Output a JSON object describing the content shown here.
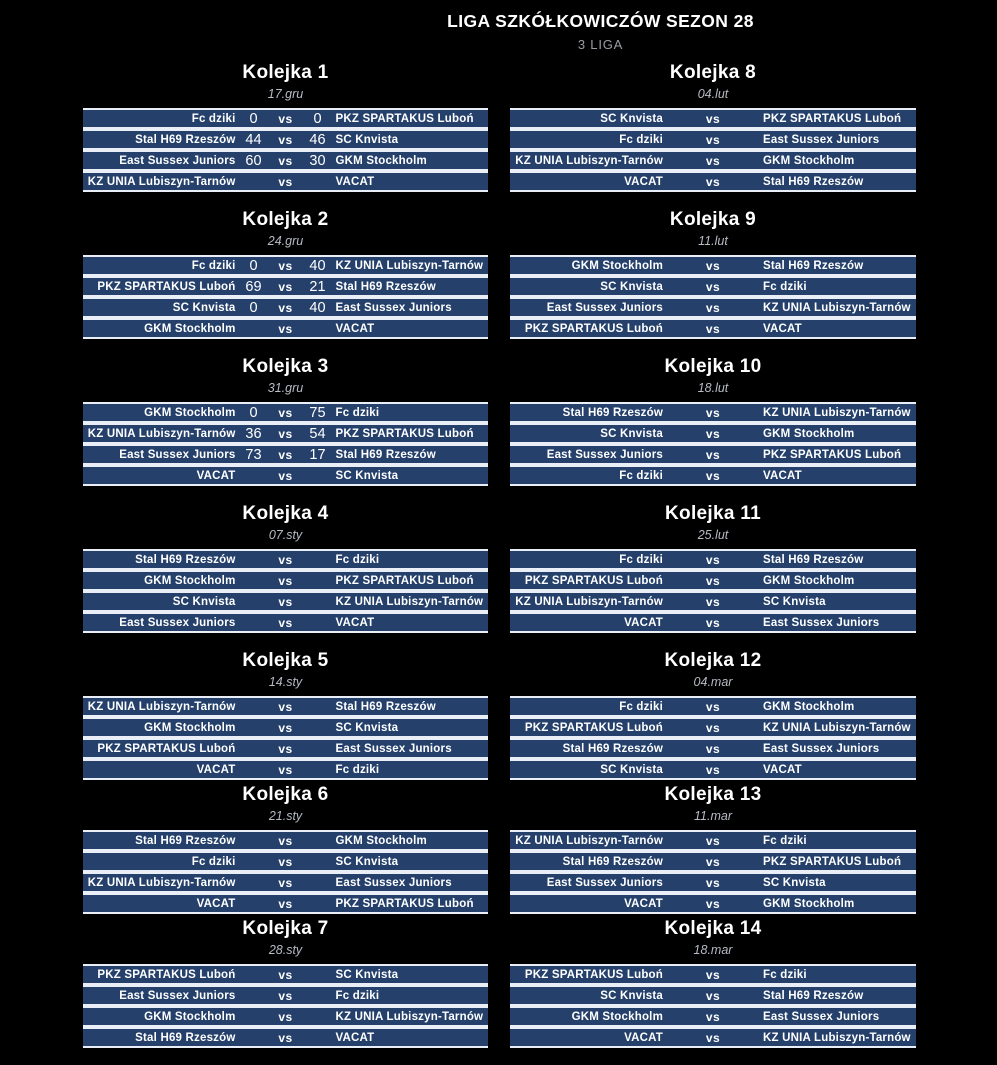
{
  "header": {
    "title": "LIGA SZKÓŁKOWICZÓW SEZON 28",
    "subtitle": "3 LIGA"
  },
  "labels": {
    "vs": "vs"
  },
  "colors": {
    "background": "#000000",
    "row_navy": "#24406b",
    "row_separator": "#e9eef7",
    "title_text": "#ffffff",
    "subtitle_text": "#9a9da3",
    "date_text": "#b7bbc4"
  },
  "rounds": [
    {
      "name": "Kolejka 1",
      "date": "17.gru",
      "column": "left",
      "matches": [
        {
          "home": "Fc dziki",
          "home_score": "0",
          "away_score": "0",
          "away": "PKŻ SPARTAKUS Luboń"
        },
        {
          "home": "Stal H69 Rzeszów",
          "home_score": "44",
          "away_score": "46",
          "away": "SC Knvista"
        },
        {
          "home": "East Sussex Juniors",
          "home_score": "60",
          "away_score": "30",
          "away": "GKM Stockholm"
        },
        {
          "home": "KŻ UNIA Lubiszyn-Tarnów",
          "home_score": "",
          "away_score": "",
          "away": "VACAT"
        }
      ]
    },
    {
      "name": "Kolejka 2",
      "date": "24.gru",
      "column": "left",
      "matches": [
        {
          "home": "Fc dziki",
          "home_score": "0",
          "away_score": "40",
          "away": "KŻ UNIA Lubiszyn-Tarnów"
        },
        {
          "home": "PKŻ SPARTAKUS Luboń",
          "home_score": "69",
          "away_score": "21",
          "away": "Stal H69 Rzeszów"
        },
        {
          "home": "SC Knvista",
          "home_score": "0",
          "away_score": "40",
          "away": "East Sussex Juniors"
        },
        {
          "home": "GKM Stockholm",
          "home_score": "",
          "away_score": "",
          "away": "VACAT"
        }
      ]
    },
    {
      "name": "Kolejka 3",
      "date": "31.gru",
      "column": "left",
      "matches": [
        {
          "home": "GKM Stockholm",
          "home_score": "0",
          "away_score": "75",
          "away": "Fc dziki"
        },
        {
          "home": "KŻ UNIA Lubiszyn-Tarnów",
          "home_score": "36",
          "away_score": "54",
          "away": "PKŻ SPARTAKUS Luboń"
        },
        {
          "home": "East Sussex Juniors",
          "home_score": "73",
          "away_score": "17",
          "away": "Stal H69 Rzeszów"
        },
        {
          "home": "VACAT",
          "home_score": "",
          "away_score": "",
          "away": "SC Knvista"
        }
      ]
    },
    {
      "name": "Kolejka 4",
      "date": "07.sty",
      "column": "left",
      "matches": [
        {
          "home": "Stal H69 Rzeszów",
          "home_score": "",
          "away_score": "",
          "away": "Fc dziki"
        },
        {
          "home": "GKM Stockholm",
          "home_score": "",
          "away_score": "",
          "away": "PKŻ SPARTAKUS Luboń"
        },
        {
          "home": "SC Knvista",
          "home_score": "",
          "away_score": "",
          "away": "KŻ UNIA Lubiszyn-Tarnów"
        },
        {
          "home": "East Sussex Juniors",
          "home_score": "",
          "away_score": "",
          "away": "VACAT"
        }
      ]
    },
    {
      "name": "Kolejka 5",
      "date": "14.sty",
      "column": "left",
      "matches": [
        {
          "home": "KŻ UNIA Lubiszyn-Tarnów",
          "home_score": "",
          "away_score": "",
          "away": "Stal H69 Rzeszów"
        },
        {
          "home": "GKM Stockholm",
          "home_score": "",
          "away_score": "",
          "away": "SC Knvista"
        },
        {
          "home": "PKŻ SPARTAKUS Luboń",
          "home_score": "",
          "away_score": "",
          "away": "East Sussex Juniors"
        },
        {
          "home": "VACAT",
          "home_score": "",
          "away_score": "",
          "away": "Fc dziki"
        }
      ]
    },
    {
      "name": "Kolejka 6",
      "date": "21.sty",
      "column": "left",
      "matches": [
        {
          "home": "Stal H69 Rzeszów",
          "home_score": "",
          "away_score": "",
          "away": "GKM Stockholm"
        },
        {
          "home": "Fc dziki",
          "home_score": "",
          "away_score": "",
          "away": "SC Knvista"
        },
        {
          "home": "KŻ UNIA Lubiszyn-Tarnów",
          "home_score": "",
          "away_score": "",
          "away": "East Sussex Juniors"
        },
        {
          "home": "VACAT",
          "home_score": "",
          "away_score": "",
          "away": "PKŻ SPARTAKUS Luboń"
        }
      ]
    },
    {
      "name": "Kolejka 7",
      "date": "28.sty",
      "column": "left",
      "matches": [
        {
          "home": "PKŻ SPARTAKUS Luboń",
          "home_score": "",
          "away_score": "",
          "away": "SC Knvista"
        },
        {
          "home": "East Sussex Juniors",
          "home_score": "",
          "away_score": "",
          "away": "Fc dziki"
        },
        {
          "home": "GKM Stockholm",
          "home_score": "",
          "away_score": "",
          "away": "KŻ UNIA Lubiszyn-Tarnów"
        },
        {
          "home": "Stal H69 Rzeszów",
          "home_score": "",
          "away_score": "",
          "away": "VACAT"
        }
      ]
    },
    {
      "name": "Kolejka 8",
      "date": "04.lut",
      "column": "right",
      "matches": [
        {
          "home": "SC Knvista",
          "home_score": "",
          "away_score": "",
          "away": "PKŻ SPARTAKUS Luboń"
        },
        {
          "home": "Fc dziki",
          "home_score": "",
          "away_score": "",
          "away": "East Sussex Juniors"
        },
        {
          "home": "KŻ UNIA Lubiszyn-Tarnów",
          "home_score": "",
          "away_score": "",
          "away": "GKM Stockholm"
        },
        {
          "home": "VACAT",
          "home_score": "",
          "away_score": "",
          "away": "Stal H69 Rzeszów"
        }
      ]
    },
    {
      "name": "Kolejka 9",
      "date": "11.lut",
      "column": "right",
      "matches": [
        {
          "home": "GKM Stockholm",
          "home_score": "",
          "away_score": "",
          "away": "Stal H69 Rzeszów"
        },
        {
          "home": "SC Knvista",
          "home_score": "",
          "away_score": "",
          "away": "Fc dziki"
        },
        {
          "home": "East Sussex Juniors",
          "home_score": "",
          "away_score": "",
          "away": "KŻ UNIA Lubiszyn-Tarnów"
        },
        {
          "home": "PKŻ SPARTAKUS Luboń",
          "home_score": "",
          "away_score": "",
          "away": "VACAT"
        }
      ]
    },
    {
      "name": "Kolejka 10",
      "date": "18.lut",
      "column": "right",
      "matches": [
        {
          "home": "Stal H69 Rzeszów",
          "home_score": "",
          "away_score": "",
          "away": "KŻ UNIA Lubiszyn-Tarnów"
        },
        {
          "home": "SC Knvista",
          "home_score": "",
          "away_score": "",
          "away": "GKM Stockholm"
        },
        {
          "home": "East Sussex Juniors",
          "home_score": "",
          "away_score": "",
          "away": "PKŻ SPARTAKUS Luboń"
        },
        {
          "home": "Fc dziki",
          "home_score": "",
          "away_score": "",
          "away": "VACAT"
        }
      ]
    },
    {
      "name": "Kolejka 11",
      "date": "25.lut",
      "column": "right",
      "matches": [
        {
          "home": "Fc dziki",
          "home_score": "",
          "away_score": "",
          "away": "Stal H69 Rzeszów"
        },
        {
          "home": "PKŻ SPARTAKUS Luboń",
          "home_score": "",
          "away_score": "",
          "away": "GKM Stockholm"
        },
        {
          "home": "KŻ UNIA Lubiszyn-Tarnów",
          "home_score": "",
          "away_score": "",
          "away": "SC Knvista"
        },
        {
          "home": "VACAT",
          "home_score": "",
          "away_score": "",
          "away": "East Sussex Juniors"
        }
      ]
    },
    {
      "name": "Kolejka 12",
      "date": "04.mar",
      "column": "right",
      "matches": [
        {
          "home": "Fc dziki",
          "home_score": "",
          "away_score": "",
          "away": "GKM Stockholm"
        },
        {
          "home": "PKŻ SPARTAKUS Luboń",
          "home_score": "",
          "away_score": "",
          "away": "KŻ UNIA Lubiszyn-Tarnów"
        },
        {
          "home": "Stal H69 Rzeszów",
          "home_score": "",
          "away_score": "",
          "away": "East Sussex Juniors"
        },
        {
          "home": "SC Knvista",
          "home_score": "",
          "away_score": "",
          "away": "VACAT"
        }
      ]
    },
    {
      "name": "Kolejka 13",
      "date": "11.mar",
      "column": "right",
      "matches": [
        {
          "home": "KŻ UNIA Lubiszyn-Tarnów",
          "home_score": "",
          "away_score": "",
          "away": "Fc dziki"
        },
        {
          "home": "Stal H69 Rzeszów",
          "home_score": "",
          "away_score": "",
          "away": "PKŻ SPARTAKUS Luboń"
        },
        {
          "home": "East Sussex Juniors",
          "home_score": "",
          "away_score": "",
          "away": "SC Knvista"
        },
        {
          "home": "VACAT",
          "home_score": "",
          "away_score": "",
          "away": "GKM Stockholm"
        }
      ]
    },
    {
      "name": "Kolejka 14",
      "date": "18.mar",
      "column": "right",
      "matches": [
        {
          "home": "PKŻ SPARTAKUS Luboń",
          "home_score": "",
          "away_score": "",
          "away": "Fc dziki"
        },
        {
          "home": "SC Knvista",
          "home_score": "",
          "away_score": "",
          "away": "Stal H69 Rzeszów"
        },
        {
          "home": "GKM Stockholm",
          "home_score": "",
          "away_score": "",
          "away": "East Sussex Juniors"
        },
        {
          "home": "VACAT",
          "home_score": "",
          "away_score": "",
          "away": "KŻ UNIA Lubiszyn-Tarnów"
        }
      ]
    }
  ]
}
